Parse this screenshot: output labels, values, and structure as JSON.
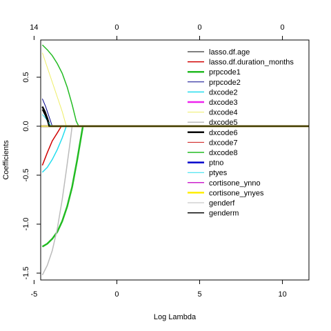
{
  "chart_data": {
    "type": "line",
    "xlabel": "Log Lambda",
    "ylabel": "Coefficients",
    "xlim": [
      -4.6,
      11.6
    ],
    "ylim": [
      -1.57,
      0.88
    ],
    "x_ticks": [
      -5,
      0,
      5,
      10
    ],
    "y_ticks": [
      -1.5,
      -1.0,
      -0.5,
      0.0,
      0.5
    ],
    "top_axis": {
      "ticks": [
        -5,
        0,
        5,
        10
      ],
      "labels": [
        "14",
        "0",
        "0",
        "0"
      ]
    },
    "legend_position": "top-right",
    "series": [
      {
        "name": "lasso.df.age",
        "color": "#000000",
        "width": 1,
        "points": [
          [
            -4.6,
            0.0
          ],
          [
            11.6,
            0.0
          ]
        ]
      },
      {
        "name": "lasso.df.duration_months",
        "color": "#d00000",
        "width": 1.5,
        "points": [
          [
            -4.5,
            -0.4
          ],
          [
            -4.2,
            -0.27
          ],
          [
            -3.9,
            -0.15
          ],
          [
            -3.6,
            -0.07
          ],
          [
            -3.35,
            0.0
          ],
          [
            11.6,
            0.0
          ]
        ]
      },
      {
        "name": "prpcode1",
        "color": "#22bb22",
        "width": 2.5,
        "points": [
          [
            -4.5,
            -1.23
          ],
          [
            -4.2,
            -1.2
          ],
          [
            -3.9,
            -1.15
          ],
          [
            -3.6,
            -1.08
          ],
          [
            -3.3,
            -0.97
          ],
          [
            -3.0,
            -0.82
          ],
          [
            -2.7,
            -0.62
          ],
          [
            -2.4,
            -0.35
          ],
          [
            -2.2,
            -0.15
          ],
          [
            -2.05,
            0.0
          ],
          [
            11.6,
            0.0
          ]
        ]
      },
      {
        "name": "prpcode2",
        "color": "#00008b",
        "width": 1,
        "points": [
          [
            -4.5,
            0.28
          ],
          [
            -4.3,
            0.2
          ],
          [
            -4.1,
            0.1
          ],
          [
            -3.9,
            0.0
          ],
          [
            11.6,
            0.0
          ]
        ]
      },
      {
        "name": "dxcode2",
        "color": "#22ddee",
        "width": 1.5,
        "points": [
          [
            -4.5,
            -0.47
          ],
          [
            -4.2,
            -0.42
          ],
          [
            -3.9,
            -0.34
          ],
          [
            -3.6,
            -0.24
          ],
          [
            -3.3,
            -0.12
          ],
          [
            -3.05,
            0.0
          ],
          [
            11.6,
            0.0
          ]
        ]
      },
      {
        "name": "dxcode3",
        "color": "#ee22ee",
        "width": 2.5,
        "points": [
          [
            -4.6,
            0.0
          ],
          [
            11.6,
            0.0
          ]
        ]
      },
      {
        "name": "dxcode4",
        "color": "#eeee66",
        "width": 1,
        "points": [
          [
            -4.5,
            0.75
          ],
          [
            -4.2,
            0.6
          ],
          [
            -3.9,
            0.45
          ],
          [
            -3.6,
            0.3
          ],
          [
            -3.3,
            0.15
          ],
          [
            -3.05,
            0.0
          ],
          [
            11.6,
            0.0
          ]
        ]
      },
      {
        "name": "dxcode5",
        "color": "#bbbbbb",
        "width": 1.5,
        "points": [
          [
            -4.5,
            -1.52
          ],
          [
            -4.2,
            -1.42
          ],
          [
            -3.9,
            -1.27
          ],
          [
            -3.6,
            -1.05
          ],
          [
            -3.3,
            -0.75
          ],
          [
            -3.05,
            -0.45
          ],
          [
            -2.85,
            -0.2
          ],
          [
            -2.7,
            0.0
          ],
          [
            11.6,
            0.0
          ]
        ]
      },
      {
        "name": "dxcode6",
        "color": "#000000",
        "width": 2.5,
        "points": [
          [
            -4.5,
            0.2
          ],
          [
            -4.35,
            0.15
          ],
          [
            -4.2,
            0.08
          ],
          [
            -4.05,
            0.0
          ],
          [
            11.6,
            0.0
          ]
        ]
      },
      {
        "name": "dxcode7",
        "color": "#cc1111",
        "width": 1,
        "points": [
          [
            -4.6,
            0.0
          ],
          [
            11.6,
            0.0
          ]
        ]
      },
      {
        "name": "dxcode8",
        "color": "#22bb22",
        "width": 1.5,
        "points": [
          [
            -4.5,
            0.83
          ],
          [
            -4.2,
            0.78
          ],
          [
            -3.9,
            0.72
          ],
          [
            -3.6,
            0.64
          ],
          [
            -3.3,
            0.54
          ],
          [
            -3.0,
            0.4
          ],
          [
            -2.7,
            0.22
          ],
          [
            -2.45,
            0.05
          ],
          [
            -2.3,
            0.0
          ],
          [
            11.6,
            0.0
          ]
        ]
      },
      {
        "name": "ptno",
        "color": "#0000cc",
        "width": 2.5,
        "points": [
          [
            -4.6,
            0.0
          ],
          [
            11.6,
            0.0
          ]
        ]
      },
      {
        "name": "ptyes",
        "color": "#22ddee",
        "width": 1,
        "points": [
          [
            -4.5,
            0.12
          ],
          [
            -4.3,
            0.08
          ],
          [
            -4.1,
            0.03
          ],
          [
            -3.95,
            0.0
          ],
          [
            11.6,
            0.0
          ]
        ]
      },
      {
        "name": "cortisone_ynno",
        "color": "#cc22cc",
        "width": 1.5,
        "points": [
          [
            -4.6,
            0.0
          ],
          [
            11.6,
            0.0
          ]
        ]
      },
      {
        "name": "cortisone_ynyes",
        "color": "#ffee00",
        "width": 2.5,
        "points": [
          [
            -4.6,
            0.0
          ],
          [
            11.6,
            0.0
          ]
        ]
      },
      {
        "name": "genderf",
        "color": "#bbbbbb",
        "width": 1,
        "points": [
          [
            -4.6,
            0.0
          ],
          [
            11.6,
            0.0
          ]
        ]
      },
      {
        "name": "genderm",
        "color": "#000000",
        "width": 1.5,
        "points": [
          [
            -4.5,
            0.17
          ],
          [
            -4.35,
            0.12
          ],
          [
            -4.2,
            0.06
          ],
          [
            -4.1,
            0.0
          ],
          [
            11.6,
            0.0
          ]
        ]
      }
    ]
  }
}
